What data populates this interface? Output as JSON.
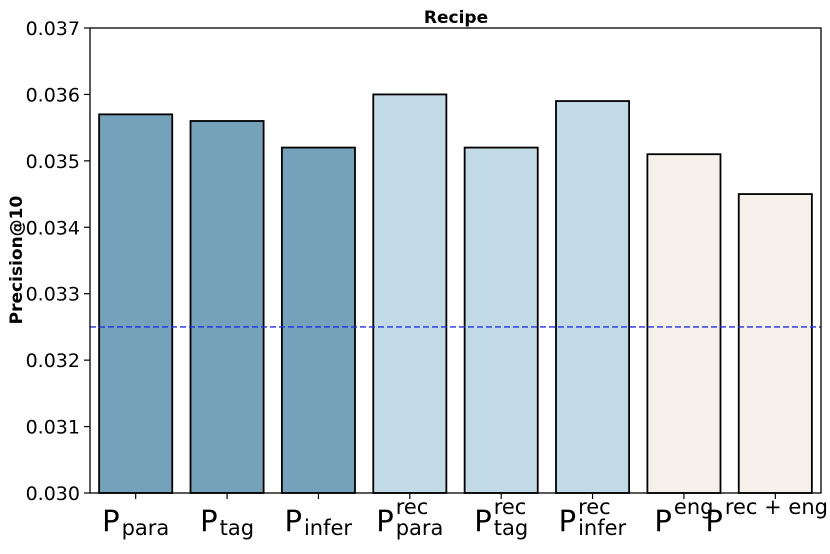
{
  "chart_data": {
    "type": "bar",
    "title": "Recipe",
    "xlabel": "",
    "ylabel": "Precision@10",
    "ylim": [
      0.03,
      0.037
    ],
    "yticks": [
      "0.030",
      "0.031",
      "0.032",
      "0.033",
      "0.034",
      "0.035",
      "0.036",
      "0.037"
    ],
    "categories": [
      {
        "base": "P",
        "sub": "para",
        "sup": ""
      },
      {
        "base": "P",
        "sub": "tag",
        "sup": ""
      },
      {
        "base": "P",
        "sub": "infer",
        "sup": ""
      },
      {
        "base": "P",
        "sub": "para",
        "sup": "rec"
      },
      {
        "base": "P",
        "sub": "tag",
        "sup": "rec"
      },
      {
        "base": "P",
        "sub": "infer",
        "sup": "rec"
      },
      {
        "base": "P",
        "sub": "",
        "sup": "eng"
      },
      {
        "base": "P",
        "sub": "",
        "sup": "rec + eng"
      }
    ],
    "values": [
      0.0357,
      0.0356,
      0.0352,
      0.036,
      0.0352,
      0.0359,
      0.0351,
      0.0345
    ],
    "bar_colors": [
      "#74a2ba",
      "#74a2ba",
      "#74a2ba",
      "#c2dae5",
      "#c2dae5",
      "#c2dae5",
      "#f5f0e9",
      "#f5f0e9"
    ],
    "bar_edge_color": "#000000",
    "baseline": {
      "value": 0.0325,
      "color": "#1f2fe6",
      "style": "dashed"
    },
    "grid": false,
    "legend": "none"
  }
}
